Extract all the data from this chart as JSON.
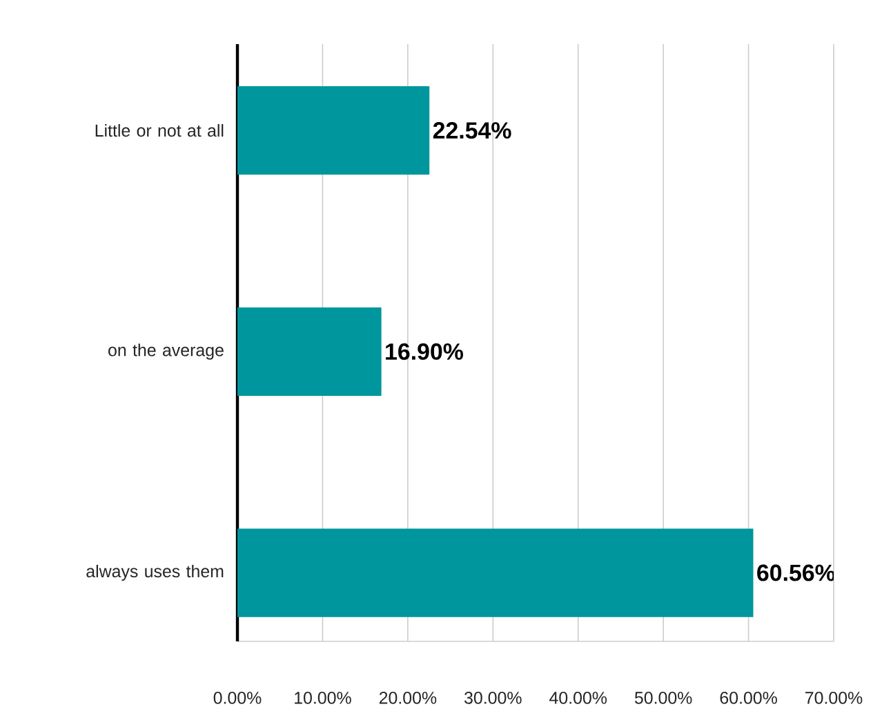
{
  "chart_data": {
    "type": "bar",
    "orientation": "horizontal",
    "categories": [
      "Little or not at all",
      "on the average",
      "always uses them"
    ],
    "values": [
      22.54,
      16.9,
      60.56
    ],
    "value_labels": [
      "22.54%",
      "16.90%",
      "60.56%"
    ],
    "color": "#00969d",
    "xlim": [
      0,
      70
    ],
    "xticks": [
      {
        "value": 0,
        "label": "0.00%"
      },
      {
        "value": 10,
        "label": "10.00%"
      },
      {
        "value": 20,
        "label": "20.00%"
      },
      {
        "value": 30,
        "label": "30.00%"
      },
      {
        "value": 40,
        "label": "40.00%"
      },
      {
        "value": 50,
        "label": "50.00%"
      },
      {
        "value": 60,
        "label": "60.00%"
      },
      {
        "value": 70,
        "label": "70.00%"
      }
    ],
    "grid": "x"
  }
}
